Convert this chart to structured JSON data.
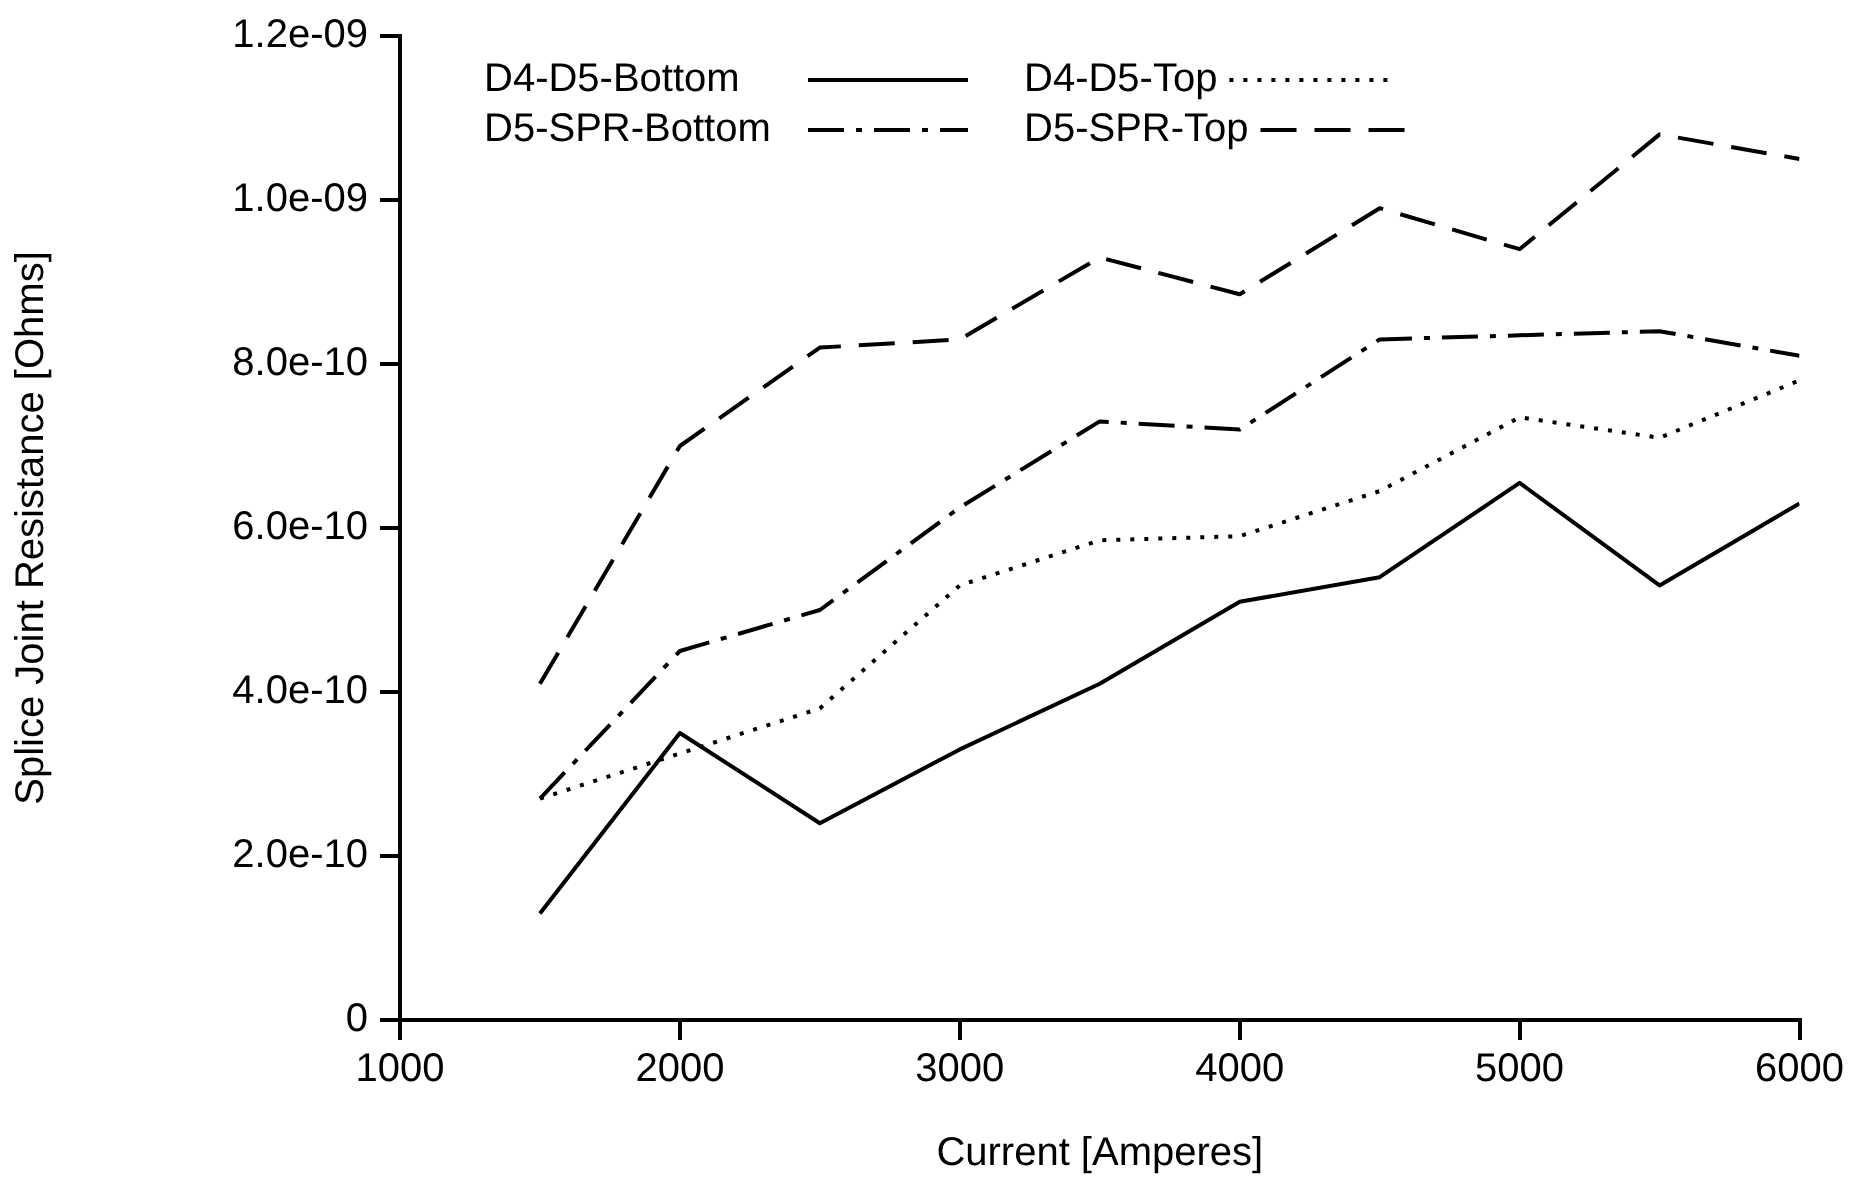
{
  "chart_data": {
    "type": "line",
    "xlabel": "Current [Amperes]",
    "ylabel": "Splice Joint Resistance [Ohms]",
    "x": [
      1500,
      2000,
      2500,
      3000,
      3500,
      4000,
      4500,
      5000,
      5500,
      6000
    ],
    "series": [
      {
        "name": "D4-D5-Bottom",
        "color": "#000000",
        "line_style": "solid",
        "values": [
          1.3e-10,
          3.5e-10,
          2.4e-10,
          3.3e-10,
          4.1e-10,
          5.1e-10,
          5.4e-10,
          6.55e-10,
          5.3e-10,
          6.3e-10
        ]
      },
      {
        "name": "D4-D5-Top",
        "color": "#000000",
        "line_style": "dotted",
        "values": [
          2.7e-10,
          3.25e-10,
          3.8e-10,
          5.3e-10,
          5.85e-10,
          5.9e-10,
          6.45e-10,
          7.35e-10,
          7.1e-10,
          7.8e-10
        ]
      },
      {
        "name": "D5-SPR-Bottom",
        "color": "#000000",
        "line_style": "dashdot",
        "values": [
          2.7e-10,
          4.5e-10,
          5e-10,
          6.25e-10,
          7.3e-10,
          7.2e-10,
          8.3e-10,
          8.35e-10,
          8.4e-10,
          8.1e-10
        ]
      },
      {
        "name": "D5-SPR-Top",
        "color": "#000000",
        "line_style": "dashed",
        "values": [
          4.1e-10,
          7e-10,
          8.2e-10,
          8.3e-10,
          9.3e-10,
          8.85e-10,
          9.9e-10,
          9.4e-10,
          1.08e-09,
          1.05e-09
        ]
      }
    ],
    "xlim": [
      1000,
      6000
    ],
    "xticks": [
      1000,
      2000,
      3000,
      4000,
      5000,
      6000
    ],
    "ylim": [
      0,
      1.2e-09
    ],
    "yticks": [
      {
        "value": 0,
        "label": "0"
      },
      {
        "value": 2e-10,
        "label": "2.0e-10"
      },
      {
        "value": 4e-10,
        "label": "4.0e-10"
      },
      {
        "value": 6e-10,
        "label": "6.0e-10"
      },
      {
        "value": 8e-10,
        "label": "8.0e-10"
      },
      {
        "value": 1e-09,
        "label": "1.0e-09"
      },
      {
        "value": 1.2e-09,
        "label": "1.2e-09"
      }
    ],
    "grid": false,
    "legend": "top left",
    "marker": "none"
  }
}
